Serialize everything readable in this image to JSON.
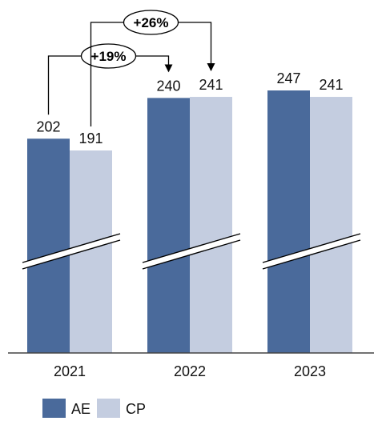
{
  "chart_data": {
    "type": "bar",
    "categories": [
      "2021",
      "2022",
      "2023"
    ],
    "series": [
      {
        "name": "AE",
        "values": [
          202,
          240,
          247
        ],
        "color": "#4a6a9b"
      },
      {
        "name": "CP",
        "values": [
          191,
          241,
          241
        ],
        "color": "#c4cde0"
      }
    ],
    "axis_break": true,
    "legend_position": "bottom-left",
    "grid": false,
    "annotations": [
      {
        "text": "+19%",
        "from": {
          "category": "2021",
          "series": "AE"
        },
        "to": {
          "category": "2022",
          "series": "AE"
        }
      },
      {
        "text": "+26%",
        "from": {
          "category": "2021",
          "series": "CP"
        },
        "to": {
          "category": "2022",
          "series": "CP"
        }
      }
    ]
  }
}
